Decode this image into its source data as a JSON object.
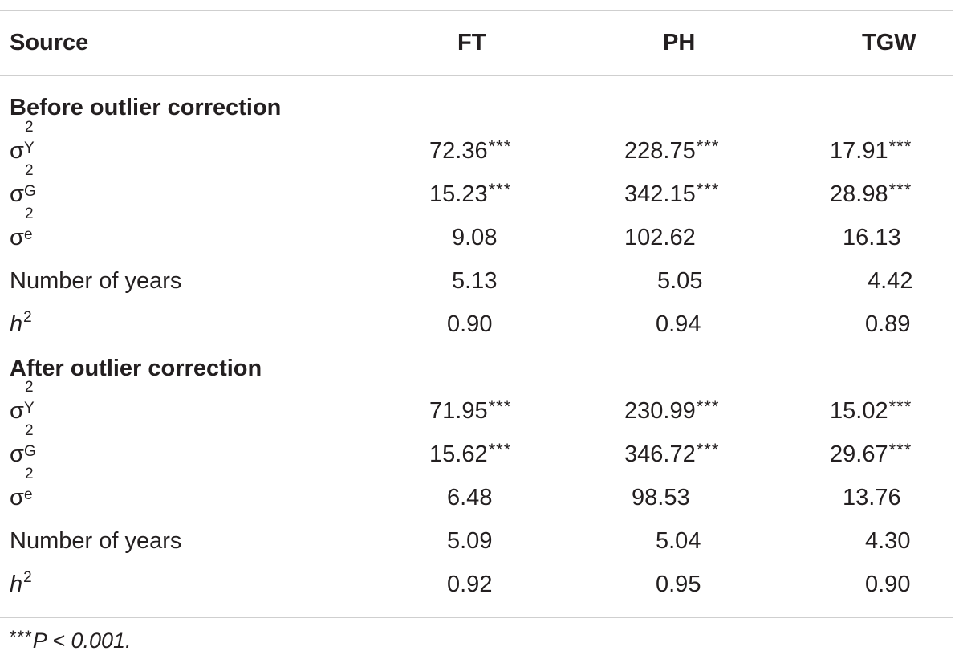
{
  "table": {
    "headers": {
      "source": "Source",
      "ft": "FT",
      "ph": "PH",
      "tgw": "TGW"
    },
    "sections": [
      {
        "title": "Before outlier correction",
        "rows": [
          {
            "symbol": "σ",
            "sup": "2",
            "sub": "Y",
            "ft": "72.36",
            "ft_sig": "***",
            "ph": "228.75",
            "ph_sig": "***",
            "tgw": "17.91",
            "tgw_sig": "***"
          },
          {
            "symbol": "σ",
            "sup": "2",
            "sub": "G",
            "ft": "15.23",
            "ft_sig": "***",
            "ph": "342.15",
            "ph_sig": "***",
            "tgw": "28.98",
            "tgw_sig": "***"
          },
          {
            "symbol": "σ",
            "sup": "2",
            "sub": "e",
            "ft": "9.08",
            "ft_sig": "",
            "ph": "102.62",
            "ph_sig": "",
            "tgw": "16.13",
            "tgw_sig": ""
          },
          {
            "label": "Number of years",
            "ft": "5.13",
            "ph": "5.05",
            "tgw": "4.42"
          },
          {
            "h_label": "h",
            "h_sup": "2",
            "ft": "0.90",
            "ph": "0.94",
            "tgw": "0.89"
          }
        ]
      },
      {
        "title": "After outlier correction",
        "rows": [
          {
            "symbol": "σ",
            "sup": "2",
            "sub": "Y",
            "ft": "71.95",
            "ft_sig": "***",
            "ph": "230.99",
            "ph_sig": "***",
            "tgw": "15.02",
            "tgw_sig": "***"
          },
          {
            "symbol": "σ",
            "sup": "2",
            "sub": "G",
            "ft": "15.62",
            "ft_sig": "***",
            "ph": "346.72",
            "ph_sig": "***",
            "tgw": "29.67",
            "tgw_sig": "***"
          },
          {
            "symbol": "σ",
            "sup": "2",
            "sub": "e",
            "ft": "6.48",
            "ft_sig": "",
            "ph": "98.53",
            "ph_sig": "",
            "tgw": "13.76",
            "tgw_sig": ""
          },
          {
            "label": "Number of years",
            "ft": "5.09",
            "ph": "5.04",
            "tgw": "4.30"
          },
          {
            "h_label": "h",
            "h_sup": "2",
            "ft": "0.92",
            "ph": "0.95",
            "tgw": "0.90"
          }
        ]
      }
    ]
  },
  "footnote": {
    "stars": "***",
    "text": "P < 0.001."
  }
}
